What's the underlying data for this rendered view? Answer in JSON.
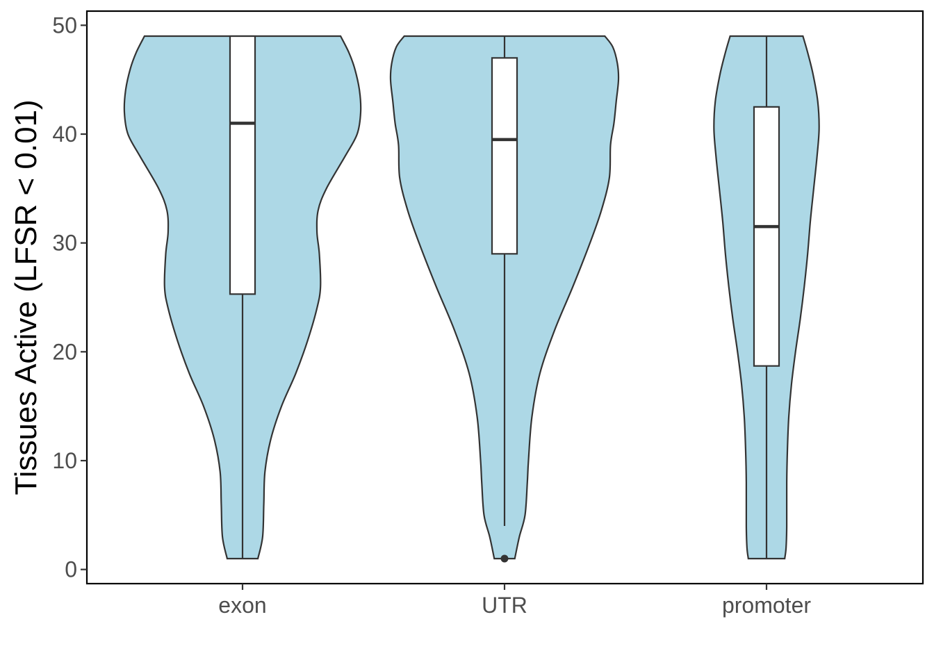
{
  "chart_data": {
    "type": "violin",
    "xlabel": "",
    "ylabel": "Tissues Active (LFSR < 0.01)",
    "ylim": [
      -1.3,
      51.3
    ],
    "yticks": [
      0,
      10,
      20,
      30,
      40,
      50
    ],
    "ytick_labels": [
      "0",
      "10",
      "20",
      "30",
      "40",
      "50"
    ],
    "categories": [
      "exon",
      "UTR",
      "promoter"
    ],
    "grid": false,
    "colors": {
      "fill": "#add8e6",
      "stroke": "#333333",
      "box_fill": "#ffffff",
      "frame": "#000000"
    },
    "series": [
      {
        "category": "exon",
        "box": {
          "whisker_low": 1,
          "q1": 25.3,
          "median": 41,
          "q3": 49,
          "whisker_high": 49
        },
        "outliers": [],
        "density_profile": [
          [
            1,
            0.13
          ],
          [
            3,
            0.17
          ],
          [
            6,
            0.18
          ],
          [
            9,
            0.19
          ],
          [
            12,
            0.24
          ],
          [
            15,
            0.33
          ],
          [
            18,
            0.45
          ],
          [
            21,
            0.55
          ],
          [
            24,
            0.63
          ],
          [
            26,
            0.66
          ],
          [
            29,
            0.65
          ],
          [
            31,
            0.63
          ],
          [
            33,
            0.64
          ],
          [
            35,
            0.71
          ],
          [
            38,
            0.87
          ],
          [
            40,
            0.97
          ],
          [
            42,
            1.0
          ],
          [
            44,
            0.99
          ],
          [
            46,
            0.95
          ],
          [
            47.5,
            0.9
          ],
          [
            49,
            0.83
          ]
        ]
      },
      {
        "category": "UTR",
        "box": {
          "whisker_low": 4,
          "q1": 29,
          "median": 39.5,
          "q3": 47,
          "whisker_high": 49
        },
        "outliers": [
          1
        ],
        "density_profile": [
          [
            1,
            0.09
          ],
          [
            3,
            0.13
          ],
          [
            5,
            0.18
          ],
          [
            8,
            0.2
          ],
          [
            10,
            0.21
          ],
          [
            14,
            0.24
          ],
          [
            18,
            0.31
          ],
          [
            22,
            0.44
          ],
          [
            26,
            0.6
          ],
          [
            30,
            0.75
          ],
          [
            33,
            0.85
          ],
          [
            36,
            0.92
          ],
          [
            39,
            0.93
          ],
          [
            41,
            0.96
          ],
          [
            43,
            0.98
          ],
          [
            45,
            1.0
          ],
          [
            46.5,
            0.99
          ],
          [
            48,
            0.95
          ],
          [
            49,
            0.88
          ]
        ]
      },
      {
        "category": "promoter",
        "box": {
          "whisker_low": 1,
          "q1": 18.7,
          "median": 31.5,
          "q3": 42.5,
          "whisker_high": 49
        },
        "outliers": [],
        "density_profile": [
          [
            1,
            0.27
          ],
          [
            2,
            0.29
          ],
          [
            4,
            0.3
          ],
          [
            8,
            0.3
          ],
          [
            11,
            0.31
          ],
          [
            14,
            0.33
          ],
          [
            17,
            0.37
          ],
          [
            20,
            0.43
          ],
          [
            23,
            0.5
          ],
          [
            26,
            0.56
          ],
          [
            29,
            0.61
          ],
          [
            32,
            0.65
          ],
          [
            35,
            0.7
          ],
          [
            38,
            0.75
          ],
          [
            40.5,
            0.78
          ],
          [
            43,
            0.76
          ],
          [
            45.5,
            0.69
          ],
          [
            47.5,
            0.61
          ],
          [
            49,
            0.54
          ]
        ]
      }
    ]
  }
}
